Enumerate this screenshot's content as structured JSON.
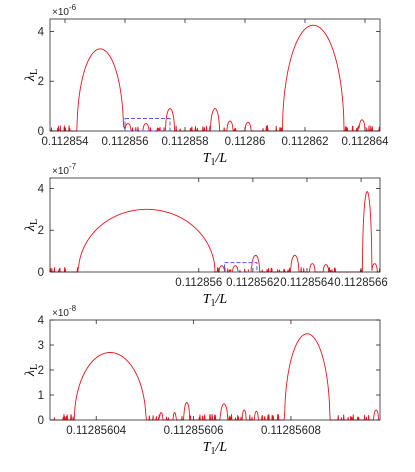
{
  "figure": {
    "colors": {
      "curve": "#e8141c",
      "box": "#5a5ad8",
      "axes": "#262626"
    },
    "xlabel_main": "T",
    "xlabel_sub": "1",
    "xlabel_tail": "/L",
    "ylabel_main": "λ",
    "ylabel_sub": "L"
  },
  "chart_data": [
    {
      "type": "line",
      "title": "",
      "xlabel": "T1/L",
      "ylabel": "λL",
      "y_exponent_label": "×10",
      "y_exponent": "-6",
      "xlim": [
        0.1128535,
        0.1128645
      ],
      "ylim": [
        0,
        4.5e-06
      ],
      "xticks": [
        0.112854,
        0.112856,
        0.112858,
        0.11286,
        0.112862,
        0.112864
      ],
      "xtick_labels": [
        "0.112854",
        "0.112856",
        "0.112858",
        "0.11286",
        "0.112862",
        "0.112864"
      ],
      "yticks": [
        0,
        2e-06,
        4e-06
      ],
      "ytick_labels": [
        "0",
        "2",
        "4"
      ],
      "grid": false,
      "series": [
        {
          "color": "#e8141c",
          "noise_level": 1.5e-07,
          "lobes": [
            {
              "x": [
                0.1128544,
                0.11285595
              ],
              "peak": 3.3e-06
            },
            {
              "x": [
                0.11285735,
                0.11285765
              ],
              "peak": 9e-07
            },
            {
              "x": [
                0.11285885,
                0.11285915
              ],
              "peak": 9e-07
            },
            {
              "x": [
                0.11286125,
                0.1128633
              ],
              "peak": 4.25e-06
            },
            {
              "x": [
                0.112856,
                0.1128562
              ],
              "peak": 3e-07
            },
            {
              "x": [
                0.1128566,
                0.1128568
              ],
              "peak": 3e-07
            },
            {
              "x": [
                0.1128594,
                0.1128596
              ],
              "peak": 4e-07
            },
            {
              "x": [
                0.11286,
                0.1128602
              ],
              "peak": 3.5e-07
            },
            {
              "x": [
                0.1128638,
                0.112864
              ],
              "peak": 4.5e-07
            }
          ]
        }
      ],
      "annotations": [
        {
          "type": "dashed-box",
          "x": [
            0.112856,
            0.1128575
          ],
          "y": [
            0,
            5e-07
          ],
          "color": "#5a5ad8"
        }
      ]
    },
    {
      "type": "line",
      "title": "",
      "xlabel": "T1/L",
      "ylabel": "λL",
      "y_exponent_label": "×10",
      "y_exponent": "-7",
      "xlim": [
        0.11285545,
        0.11285667
      ],
      "ylim": [
        0,
        4.5e-07
      ],
      "xticks": [
        0.112856,
        0.1128562,
        0.1128564,
        0.1128566
      ],
      "xtick_labels": [
        "0.112856",
        "0.1128562",
        "0.1128564",
        "0.1128566"
      ],
      "yticks": [
        0,
        2e-07,
        4e-07
      ],
      "ytick_labels": [
        "0",
        "2",
        "4"
      ],
      "grid": false,
      "series": [
        {
          "color": "#e8141c",
          "noise_level": 1.5e-08,
          "lobes": [
            {
              "x": [
                0.112855555,
                0.11285606
              ],
              "peak": 3e-07
            },
            {
              "x": [
                0.112856195,
                0.112856225
              ],
              "peak": 8e-08
            },
            {
              "x": [
                0.11285634,
                0.11285637
              ],
              "peak": 8e-08
            },
            {
              "x": [
                0.11285659,
                0.112856505
              ],
              "peak": 0
            },
            {
              "x": [
                0.112856605,
                0.11285664
              ],
              "peak": 3.85e-07
            },
            {
              "x": [
                0.112856075,
                0.112856095
              ],
              "peak": 3e-08
            },
            {
              "x": [
                0.112856125,
                0.112856145
              ],
              "peak": 3e-08
            },
            {
              "x": [
                0.11285641,
                0.11285643
              ],
              "peak": 4e-08
            },
            {
              "x": [
                0.11285646,
                0.11285648
              ],
              "peak": 3.5e-08
            },
            {
              "x": [
                0.11285664,
                0.11285666
              ],
              "peak": 4e-08
            }
          ]
        }
      ],
      "annotations": [
        {
          "type": "dashed-box",
          "x": [
            0.112856095,
            0.112856215
          ],
          "y": [
            0,
            4.5e-08
          ],
          "color": "#5a5ad8"
        }
      ]
    },
    {
      "type": "line",
      "title": "",
      "xlabel": "T1/L",
      "ylabel": "λL",
      "y_exponent_label": "×10",
      "y_exponent": "-8",
      "xlim": [
        0.1128560305,
        0.1128560983
      ],
      "ylim": [
        0,
        4e-08
      ],
      "xticks": [
        0.11285604,
        0.11285606,
        0.11285608
      ],
      "xtick_labels": [
        "0.11285604",
        "0.11285606",
        "0.11285608"
      ],
      "yticks": [
        0,
        1e-08,
        2e-08,
        3e-08,
        4e-08
      ],
      "ytick_labels": [
        "0",
        "1",
        "2",
        "3",
        "4"
      ],
      "grid": false,
      "series": [
        {
          "color": "#e8141c",
          "noise_level": 1.5e-09,
          "lobes": [
            {
              "x": [
                0.1128560355,
                0.1128560502
              ],
              "peak": 2.7e-08
            },
            {
              "x": [
                0.112856058,
                0.1128560592
              ],
              "peak": 7e-09
            },
            {
              "x": [
                0.1128560655,
                0.112856067
              ],
              "peak": 6.5e-09
            },
            {
              "x": [
                0.1128560787,
                0.112856088
              ],
              "peak": 3.45e-08
            },
            {
              "x": [
                0.112856053,
                0.1128560537
              ],
              "peak": 3e-09
            },
            {
              "x": [
                0.1128560558,
                0.1128560564
              ],
              "peak": 3e-09
            },
            {
              "x": [
                0.11285607,
                0.1128560708
              ],
              "peak": 4e-09
            },
            {
              "x": [
                0.1128560725,
                0.1128560733
              ],
              "peak": 3.5e-09
            },
            {
              "x": [
                0.112856097,
                0.112856098
              ],
              "peak": 4e-09
            }
          ]
        }
      ],
      "annotations": []
    }
  ]
}
